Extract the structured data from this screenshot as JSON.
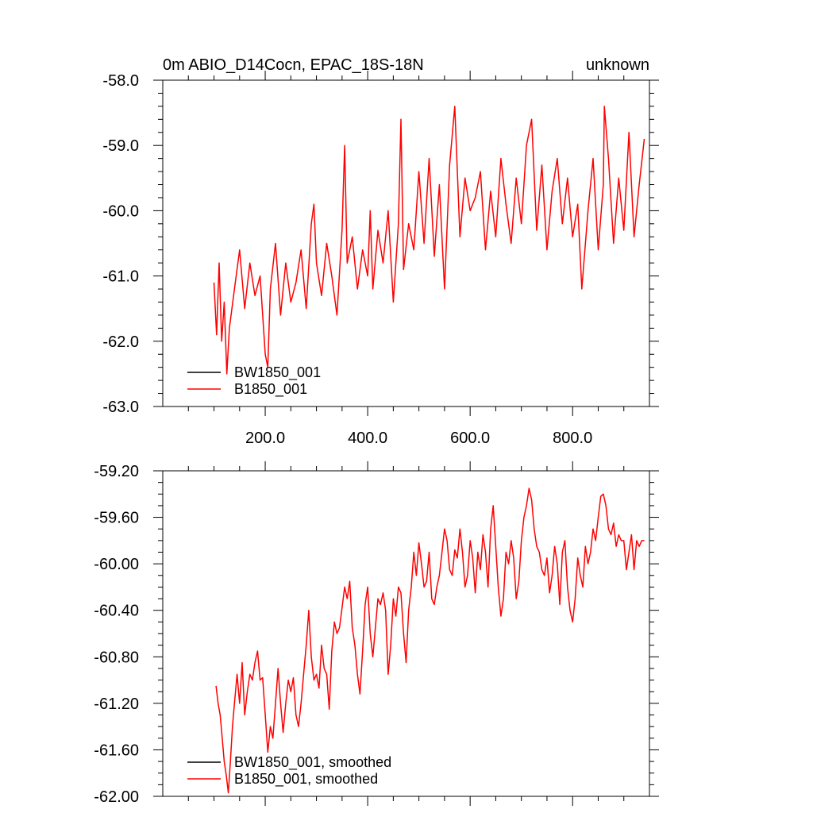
{
  "chart_data": [
    {
      "type": "line",
      "title": "0m ABIO_D14Cocn, EPAC_18S-18N",
      "right_title": "unknown",
      "xlabel": "",
      "ylabel": "",
      "xlim": [
        0,
        950
      ],
      "ylim": [
        -63.0,
        -58.0
      ],
      "x_ticks": [
        200,
        400,
        600,
        800
      ],
      "x_tick_labels": [
        "200.0",
        "400.0",
        "600.0",
        "800.0"
      ],
      "y_ticks": [
        -58.0,
        -59.0,
        -60.0,
        -61.0,
        -62.0,
        -63.0
      ],
      "y_tick_labels": [
        "-58.0",
        "-59.0",
        "-60.0",
        "-61.0",
        "-62.0",
        "-63.0"
      ],
      "legend_position": "bottom-left",
      "legend": [
        {
          "name": "BW1850_001",
          "color": "#000000"
        },
        {
          "name": "B1850_001",
          "color": "#ff0000"
        }
      ],
      "series": [
        {
          "name": "BW1850_001",
          "color": "#000000",
          "x": [],
          "y": []
        },
        {
          "name": "B1850_001",
          "color": "#ff0000",
          "x": [
            100,
            105,
            110,
            115,
            120,
            125,
            130,
            140,
            150,
            160,
            170,
            180,
            190,
            200,
            205,
            210,
            220,
            230,
            240,
            250,
            260,
            270,
            280,
            290,
            295,
            300,
            310,
            320,
            330,
            340,
            350,
            355,
            360,
            370,
            380,
            390,
            400,
            405,
            410,
            420,
            430,
            440,
            450,
            460,
            465,
            470,
            480,
            490,
            500,
            510,
            520,
            530,
            540,
            550,
            560,
            570,
            580,
            590,
            600,
            610,
            620,
            630,
            640,
            650,
            660,
            670,
            680,
            690,
            700,
            710,
            720,
            730,
            740,
            750,
            760,
            770,
            780,
            790,
            800,
            810,
            818,
            830,
            840,
            850,
            860,
            862,
            870,
            880,
            890,
            900,
            910,
            920,
            930,
            940
          ],
          "y": [
            -61.1,
            -61.9,
            -60.8,
            -62.0,
            -61.4,
            -62.5,
            -61.8,
            -61.2,
            -60.6,
            -61.5,
            -60.8,
            -61.3,
            -61.0,
            -62.2,
            -62.4,
            -61.2,
            -60.5,
            -61.6,
            -60.8,
            -61.4,
            -61.1,
            -60.6,
            -61.5,
            -60.2,
            -59.9,
            -60.8,
            -61.3,
            -60.5,
            -61.0,
            -61.6,
            -60.3,
            -59.0,
            -60.8,
            -60.4,
            -61.2,
            -60.6,
            -61.0,
            -60.0,
            -61.2,
            -60.3,
            -60.8,
            -60.0,
            -61.4,
            -60.2,
            -58.6,
            -60.9,
            -60.2,
            -60.6,
            -59.4,
            -60.5,
            -59.2,
            -60.7,
            -59.6,
            -61.2,
            -59.3,
            -58.4,
            -60.4,
            -59.5,
            -60.0,
            -59.8,
            -59.4,
            -60.6,
            -59.7,
            -60.4,
            -59.2,
            -59.9,
            -60.5,
            -59.5,
            -60.2,
            -59.0,
            -58.6,
            -60.3,
            -59.3,
            -60.6,
            -59.7,
            -59.2,
            -60.2,
            -59.5,
            -60.4,
            -59.9,
            -61.2,
            -60.0,
            -59.2,
            -60.6,
            -59.6,
            -58.4,
            -59.2,
            -60.5,
            -59.5,
            -60.3,
            -58.8,
            -60.4,
            -59.6,
            -58.9
          ]
        }
      ]
    },
    {
      "type": "line",
      "title": "",
      "xlabel": "",
      "ylabel": "",
      "xlim": [
        0,
        950
      ],
      "ylim": [
        -62.0,
        -59.2
      ],
      "x_ticks": [
        200,
        400,
        600,
        800
      ],
      "x_tick_labels": [],
      "y_ticks": [
        -59.2,
        -59.6,
        -60.0,
        -60.4,
        -60.8,
        -61.2,
        -61.6,
        -62.0
      ],
      "y_tick_labels": [
        "-59.20",
        "-59.60",
        "-60.00",
        "-60.40",
        "-60.80",
        "-61.20",
        "-61.60",
        "-62.00"
      ],
      "legend_position": "bottom-left",
      "legend": [
        {
          "name": "BW1850_001, smoothed",
          "color": "#000000"
        },
        {
          "name": "B1850_001, smoothed",
          "color": "#ff0000"
        }
      ],
      "series": [
        {
          "name": "BW1850_001, smoothed",
          "color": "#000000",
          "x": [],
          "y": []
        },
        {
          "name": "B1850_001, smoothed",
          "color": "#ff0000",
          "x": [
            104,
            108,
            112,
            116,
            120,
            124,
            128,
            132,
            136,
            140,
            145,
            150,
            155,
            160,
            165,
            170,
            175,
            180,
            185,
            190,
            195,
            200,
            205,
            210,
            215,
            220,
            225,
            230,
            235,
            240,
            245,
            250,
            255,
            260,
            265,
            270,
            275,
            280,
            285,
            290,
            295,
            300,
            305,
            310,
            315,
            320,
            325,
            330,
            335,
            340,
            345,
            350,
            355,
            360,
            365,
            370,
            375,
            380,
            385,
            390,
            395,
            400,
            405,
            410,
            415,
            420,
            425,
            430,
            435,
            440,
            445,
            450,
            455,
            460,
            465,
            470,
            475,
            480,
            485,
            490,
            495,
            500,
            505,
            510,
            515,
            520,
            525,
            530,
            535,
            540,
            545,
            550,
            555,
            560,
            565,
            570,
            575,
            580,
            585,
            590,
            595,
            600,
            605,
            610,
            615,
            620,
            625,
            630,
            635,
            640,
            645,
            650,
            655,
            660,
            665,
            670,
            675,
            680,
            685,
            690,
            695,
            700,
            705,
            710,
            715,
            720,
            725,
            730,
            735,
            740,
            745,
            750,
            755,
            760,
            765,
            770,
            775,
            780,
            785,
            790,
            795,
            800,
            805,
            810,
            815,
            820,
            825,
            830,
            835,
            840,
            845,
            850,
            855,
            860,
            865,
            870,
            875,
            880,
            885,
            890,
            895,
            900,
            905,
            910,
            915,
            920,
            925,
            930,
            935,
            940
          ],
          "y": [
            -61.05,
            -61.2,
            -61.3,
            -61.5,
            -61.7,
            -61.82,
            -61.97,
            -61.7,
            -61.4,
            -61.2,
            -60.95,
            -61.2,
            -60.85,
            -61.3,
            -61.1,
            -60.95,
            -61.0,
            -60.85,
            -60.75,
            -61.0,
            -60.98,
            -61.3,
            -61.62,
            -61.4,
            -61.5,
            -61.2,
            -60.9,
            -61.2,
            -61.45,
            -61.2,
            -61.0,
            -61.1,
            -60.98,
            -61.3,
            -61.4,
            -61.2,
            -60.95,
            -60.7,
            -60.4,
            -60.8,
            -61.0,
            -60.95,
            -61.07,
            -60.7,
            -60.9,
            -60.95,
            -61.25,
            -60.75,
            -60.5,
            -60.6,
            -60.55,
            -60.38,
            -60.2,
            -60.3,
            -60.15,
            -60.55,
            -60.7,
            -60.95,
            -61.12,
            -60.75,
            -60.35,
            -60.2,
            -60.6,
            -60.8,
            -60.55,
            -60.3,
            -60.35,
            -60.25,
            -60.4,
            -60.95,
            -60.7,
            -60.3,
            -60.45,
            -60.2,
            -60.25,
            -60.6,
            -60.85,
            -60.4,
            -60.2,
            -59.9,
            -60.1,
            -59.82,
            -60.0,
            -60.2,
            -60.15,
            -59.9,
            -60.3,
            -60.35,
            -60.2,
            -60.1,
            -59.9,
            -59.7,
            -59.8,
            -60.05,
            -60.1,
            -59.88,
            -59.95,
            -59.7,
            -59.9,
            -60.2,
            -60.1,
            -59.8,
            -59.95,
            -60.25,
            -59.9,
            -60.05,
            -59.75,
            -59.9,
            -60.2,
            -59.7,
            -59.5,
            -59.85,
            -60.2,
            -60.45,
            -60.3,
            -59.9,
            -60.0,
            -59.8,
            -59.95,
            -60.3,
            -60.15,
            -59.8,
            -59.6,
            -59.5,
            -59.35,
            -59.45,
            -59.7,
            -59.85,
            -59.9,
            -60.05,
            -60.1,
            -59.95,
            -60.25,
            -60.1,
            -59.85,
            -60.0,
            -60.35,
            -59.9,
            -59.8,
            -60.2,
            -60.4,
            -60.5,
            -60.3,
            -59.95,
            -60.1,
            -60.2,
            -59.85,
            -60.0,
            -59.9,
            -59.7,
            -59.8,
            -59.6,
            -59.42,
            -59.4,
            -59.5,
            -59.7,
            -59.75,
            -59.65,
            -59.85,
            -59.75,
            -59.8,
            -59.8,
            -60.05,
            -59.9,
            -59.75,
            -60.05,
            -59.8,
            -59.85,
            -59.8,
            -59.8
          ]
        }
      ]
    }
  ]
}
